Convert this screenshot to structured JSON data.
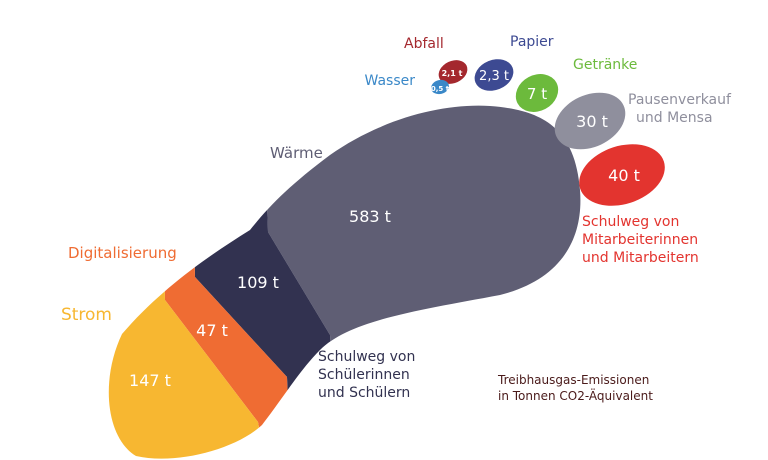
{
  "title": {
    "line1": "Treibhausgas-Emissionen",
    "line2": "in Tonnen CO2-Äquivalent"
  },
  "foot_segments": [
    {
      "key": "strom",
      "category": "Strom",
      "value": "147 t",
      "color": "#f7b731"
    },
    {
      "key": "digitalisierung",
      "category": "Digitalisierung",
      "value": "47 t",
      "color": "#ef6c33"
    },
    {
      "key": "schulweg_schueler",
      "category_lines": [
        "Schulweg von",
        "Schülerinnen",
        "und Schülern"
      ],
      "value": "109 t",
      "color": "#323250"
    },
    {
      "key": "waerme",
      "category": "Wärme",
      "value": "583 t",
      "color": "#5f5e74"
    }
  ],
  "toes": [
    {
      "key": "wasser",
      "category": "Wasser",
      "value": "0,5 t",
      "color": "#3a88c8"
    },
    {
      "key": "abfall",
      "category": "Abfall",
      "value": "2,1 t",
      "color": "#a4282e"
    },
    {
      "key": "papier",
      "category": "Papier",
      "value": "2,3 t",
      "color": "#3d4a92"
    },
    {
      "key": "getraenke",
      "category": "Getränke",
      "value": "7 t",
      "color": "#6cba3c"
    },
    {
      "key": "pausenverkauf",
      "category_lines": [
        "Pausenverkauf",
        "und Mensa"
      ],
      "value": "30 t",
      "color": "#8f8f9d"
    },
    {
      "key": "schulweg_mitarbeiter",
      "category_lines": [
        "Schulweg von",
        "Mitarbeiterinnen",
        "und Mitarbeitern"
      ],
      "value": "40 t",
      "color": "#e3342f"
    }
  ],
  "label_colors": {
    "waerme": "#5f5e74",
    "schulweg_schueler": "#323250",
    "title": "#4a1a1a"
  }
}
